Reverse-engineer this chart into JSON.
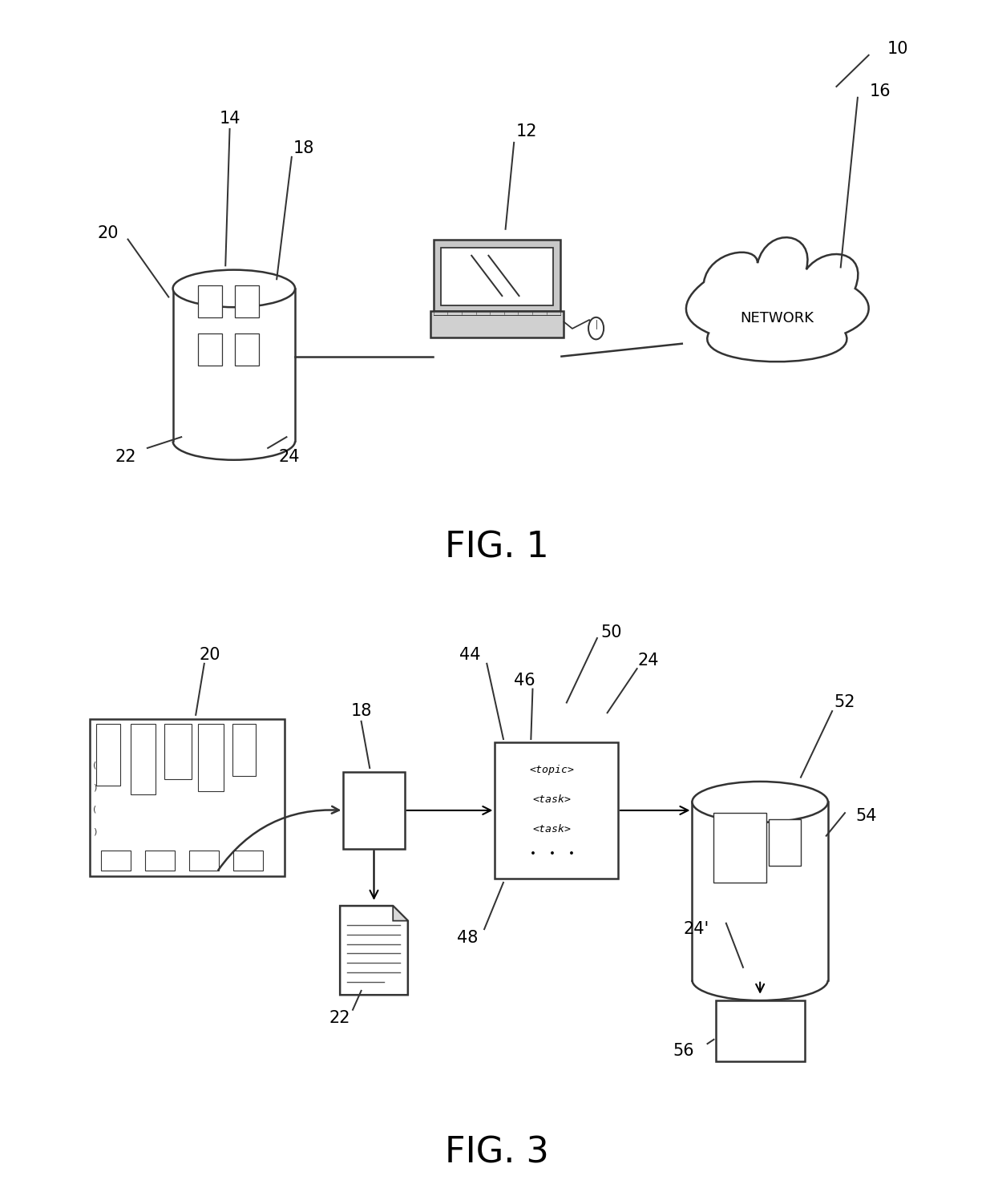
{
  "fig1_label": "FIG. 1",
  "fig3_label": "FIG. 3",
  "bg_color": "#ffffff",
  "line_color": "#333333",
  "line_width": 1.8,
  "label_fontsize": 15,
  "fig_label_fontsize": 32,
  "network_text": "NETWORK",
  "dita_text": [
    "<topic>",
    "<task>",
    "<task>",
    "•  •  •"
  ]
}
